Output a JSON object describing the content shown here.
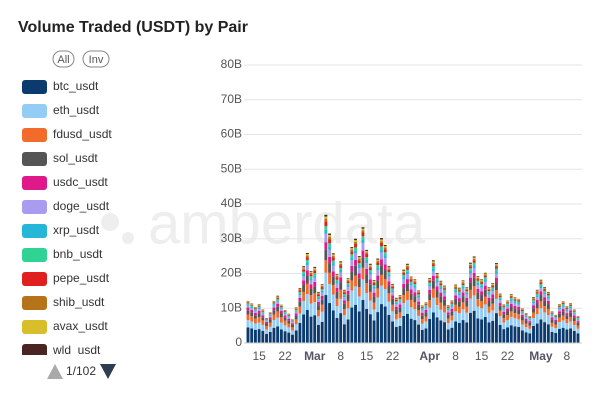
{
  "chart_data": {
    "type": "stacked-bar",
    "title": "Volume Traded (USDT) by Pair",
    "watermark": "amberdata",
    "controls": {
      "all": "All",
      "inv": "Inv",
      "page": "1/102"
    },
    "categories": [
      null,
      null,
      null,
      "15",
      null,
      null,
      null,
      null,
      null,
      null,
      "22",
      null,
      null,
      null,
      null,
      null,
      null,
      null,
      "Mar",
      null,
      null,
      null,
      null,
      null,
      null,
      "8",
      null,
      null,
      null,
      null,
      null,
      null,
      "15",
      null,
      null,
      null,
      null,
      null,
      null,
      "22",
      null,
      null,
      null,
      null,
      null,
      null,
      null,
      null,
      null,
      "Apr",
      null,
      null,
      null,
      null,
      null,
      null,
      "8",
      null,
      null,
      null,
      null,
      null,
      null,
      "15",
      null,
      null,
      null,
      null,
      null,
      null,
      "22",
      null,
      null,
      null,
      null,
      null,
      null,
      null,
      null,
      "May",
      null,
      null,
      null,
      null,
      null,
      null,
      "8",
      null,
      null,
      null
    ],
    "ylim": [
      0,
      80
    ],
    "yticks": [
      0,
      {
        "value": 10,
        "label": "10B"
      },
      {
        "value": 20,
        "label": "20B"
      },
      {
        "value": 30,
        "label": "30B"
      },
      {
        "value": 40,
        "label": "40B"
      },
      {
        "value": 50,
        "label": "50B"
      },
      {
        "value": 60,
        "label": "60B"
      },
      {
        "value": 70,
        "label": "70B"
      },
      {
        "value": 80,
        "label": "80B"
      }
    ],
    "grid": true,
    "series": [
      {
        "name": "btc_usdt",
        "color": "#0b3a6e",
        "values": [
          4.5,
          4.2,
          3.8,
          4.0,
          3.5,
          2.6,
          3.2,
          4.4,
          4.8,
          3.9,
          3.4,
          3.0,
          2.4,
          3.6,
          5.8,
          8.2,
          9.5,
          7.6,
          8.0,
          5.2,
          6.1,
          13.8,
          11.5,
          9.4,
          7.2,
          8.6,
          5.4,
          6.8,
          10.2,
          11.0,
          9.1,
          12.4,
          9.8,
          8.3,
          6.5,
          8.9,
          11.2,
          10.5,
          8.1,
          6.2,
          4.6,
          4.9,
          7.8,
          8.4,
          7.0,
          6.6,
          5.3,
          3.8,
          4.2,
          6.9,
          8.8,
          7.4,
          6.5,
          6.0,
          3.9,
          4.4,
          6.2,
          5.8,
          6.6,
          5.9,
          8.7,
          9.3,
          7.1,
          6.8,
          7.5,
          5.9,
          6.4,
          8.6,
          5.2,
          4.0,
          4.5,
          5.1,
          4.8,
          4.6,
          3.6,
          3.1,
          2.8,
          4.9,
          5.6,
          6.8,
          6.0,
          5.4,
          3.2,
          2.9,
          4.1,
          4.4,
          3.9,
          4.2,
          3.5,
          2.8
        ]
      },
      {
        "name": "eth_usdt",
        "color": "#93cdf6",
        "values": [
          2.1,
          2.0,
          1.8,
          1.9,
          1.7,
          1.3,
          1.5,
          2.2,
          2.5,
          2.0,
          1.7,
          1.5,
          1.2,
          1.8,
          2.7,
          3.9,
          4.6,
          3.7,
          3.8,
          2.5,
          2.9,
          6.4,
          5.5,
          4.5,
          3.4,
          4.1,
          2.6,
          3.2,
          4.9,
          5.3,
          4.3,
          5.9,
          4.6,
          3.9,
          3.1,
          4.2,
          5.3,
          5.0,
          3.8,
          2.9,
          2.2,
          2.3,
          3.7,
          4.0,
          3.3,
          3.1,
          2.5,
          1.8,
          2.0,
          3.3,
          4.2,
          3.5,
          3.1,
          2.8,
          1.8,
          2.1,
          2.9,
          2.8,
          3.1,
          2.8,
          4.1,
          4.4,
          3.4,
          3.2,
          3.6,
          2.8,
          3.0,
          4.1,
          2.5,
          1.9,
          2.1,
          2.4,
          2.3,
          2.2,
          1.7,
          1.5,
          1.3,
          2.3,
          2.7,
          3.2,
          2.8,
          2.6,
          1.5,
          1.4,
          1.9,
          2.1,
          1.8,
          2.0,
          1.7,
          1.3
        ]
      },
      {
        "name": "fdusd_usdt",
        "color": "#f26b2a",
        "values": [
          1.6,
          1.5,
          1.4,
          1.5,
          1.3,
          1.0,
          1.2,
          1.6,
          1.8,
          1.5,
          1.3,
          1.1,
          0.9,
          1.4,
          2.0,
          2.6,
          3.0,
          2.5,
          2.5,
          1.8,
          2.0,
          3.6,
          3.2,
          2.8,
          2.2,
          2.6,
          1.8,
          2.1,
          2.9,
          3.1,
          2.7,
          3.4,
          2.8,
          2.5,
          2.0,
          2.6,
          3.1,
          2.9,
          2.4,
          1.9,
          1.5,
          1.6,
          2.3,
          2.5,
          2.1,
          2.0,
          1.7,
          1.3,
          1.4,
          2.1,
          2.6,
          2.2,
          2.0,
          1.9,
          1.3,
          1.4,
          1.9,
          1.8,
          2.0,
          1.8,
          2.5,
          2.7,
          2.1,
          2.0,
          2.2,
          1.8,
          1.9,
          2.5,
          1.6,
          1.3,
          1.4,
          1.6,
          1.5,
          1.5,
          1.2,
          1.0,
          0.9,
          1.5,
          1.7,
          2.0,
          1.8,
          1.7,
          1.1,
          1.0,
          1.3,
          1.4,
          1.2,
          1.3,
          1.1,
          0.9
        ]
      },
      {
        "name": "sol_usdt",
        "color": "#555555",
        "values": [
          1.2,
          1.1,
          1.0,
          1.1,
          0.9,
          0.7,
          0.9,
          1.2,
          1.3,
          1.1,
          0.9,
          0.8,
          0.7,
          1.0,
          1.5,
          2.0,
          2.3,
          1.9,
          2.0,
          1.4,
          1.6,
          3.2,
          2.8,
          2.4,
          1.9,
          2.2,
          1.5,
          1.8,
          2.6,
          2.8,
          2.4,
          3.0,
          2.5,
          2.2,
          1.8,
          2.3,
          2.8,
          2.6,
          2.1,
          1.7,
          1.3,
          1.4,
          2.0,
          2.2,
          1.9,
          1.8,
          1.5,
          1.1,
          1.2,
          1.9,
          2.3,
          2.0,
          1.8,
          1.7,
          1.1,
          1.2,
          1.7,
          1.6,
          1.8,
          1.6,
          2.2,
          2.4,
          1.9,
          1.8,
          2.0,
          1.6,
          1.7,
          2.2,
          1.4,
          1.1,
          1.2,
          1.4,
          1.3,
          1.3,
          1.0,
          0.9,
          0.8,
          1.3,
          1.5,
          1.8,
          1.6,
          1.5,
          1.0,
          0.9,
          1.1,
          1.2,
          1.1,
          1.2,
          1.0,
          0.8
        ]
      },
      {
        "name": "usdc_usdt",
        "color": "#e0198a",
        "values": [
          0.8,
          0.7,
          0.7,
          0.8,
          0.6,
          0.5,
          0.6,
          0.8,
          0.9,
          0.7,
          0.6,
          0.6,
          0.5,
          0.7,
          1.0,
          1.3,
          1.5,
          1.2,
          1.3,
          0.9,
          1.0,
          2.0,
          1.8,
          1.5,
          1.2,
          1.4,
          1.0,
          1.1,
          1.6,
          1.7,
          1.5,
          1.9,
          1.6,
          1.4,
          1.1,
          1.4,
          1.7,
          1.6,
          1.3,
          1.0,
          0.8,
          0.9,
          1.2,
          1.3,
          1.1,
          1.1,
          0.9,
          0.7,
          0.7,
          1.1,
          1.4,
          1.2,
          1.1,
          1.0,
          0.7,
          0.7,
          1.0,
          0.9,
          1.1,
          0.9,
          1.3,
          1.4,
          1.1,
          1.1,
          1.2,
          0.9,
          1.0,
          1.3,
          0.8,
          0.7,
          0.7,
          0.8,
          0.8,
          0.8,
          0.6,
          0.5,
          0.5,
          0.8,
          0.9,
          1.1,
          1.0,
          0.9,
          0.6,
          0.5,
          0.7,
          0.7,
          0.6,
          0.7,
          0.6,
          0.5
        ]
      },
      {
        "name": "doge_usdt",
        "color": "#a99cf0",
        "values": [
          0.5,
          0.5,
          0.4,
          0.5,
          0.4,
          0.3,
          0.4,
          0.5,
          0.6,
          0.5,
          0.4,
          0.4,
          0.3,
          0.5,
          0.8,
          1.2,
          1.5,
          1.1,
          1.2,
          0.8,
          0.9,
          2.4,
          2.0,
          1.6,
          1.2,
          1.4,
          0.9,
          1.1,
          1.6,
          1.8,
          1.5,
          2.1,
          1.7,
          1.4,
          1.1,
          1.5,
          1.9,
          1.8,
          1.4,
          1.0,
          0.8,
          0.8,
          1.3,
          1.4,
          1.2,
          1.3,
          1.2,
          0.7,
          0.7,
          1.0,
          1.3,
          1.1,
          1.0,
          0.9,
          0.6,
          0.7,
          0.9,
          0.9,
          1.0,
          0.9,
          1.2,
          1.4,
          1.1,
          1.0,
          1.1,
          0.9,
          0.9,
          1.2,
          0.8,
          0.6,
          0.7,
          0.8,
          0.7,
          0.7,
          0.5,
          0.5,
          0.4,
          0.7,
          0.8,
          0.9,
          0.8,
          0.7,
          0.5,
          0.4,
          0.6,
          0.6,
          0.5,
          0.6,
          0.5,
          0.4
        ]
      },
      {
        "name": "xrp_usdt",
        "color": "#26b6d8",
        "values": [
          0.4,
          0.4,
          0.3,
          0.4,
          0.3,
          0.2,
          0.3,
          0.4,
          0.4,
          0.3,
          0.3,
          0.3,
          0.2,
          0.3,
          0.5,
          0.7,
          0.8,
          0.6,
          0.7,
          0.5,
          0.5,
          1.2,
          1.0,
          0.8,
          0.6,
          0.7,
          0.5,
          0.6,
          0.9,
          1.0,
          0.8,
          1.1,
          0.9,
          0.7,
          0.6,
          0.8,
          1.0,
          0.9,
          0.7,
          0.5,
          0.4,
          0.4,
          0.7,
          0.7,
          0.6,
          0.6,
          0.5,
          0.3,
          0.4,
          0.6,
          0.8,
          0.7,
          0.6,
          0.5,
          0.4,
          0.4,
          0.5,
          0.5,
          0.6,
          0.5,
          0.8,
          0.8,
          0.6,
          0.6,
          0.7,
          0.5,
          0.6,
          0.8,
          0.5,
          0.4,
          0.4,
          0.5,
          0.4,
          0.4,
          0.3,
          0.3,
          0.3,
          0.4,
          0.5,
          0.6,
          0.5,
          0.5,
          0.3,
          0.3,
          0.4,
          0.4,
          0.4,
          0.4,
          0.3,
          0.3
        ]
      },
      {
        "name": "bnb_usdt",
        "color": "#2fd494",
        "values": [
          0.3,
          0.3,
          0.3,
          0.3,
          0.3,
          0.2,
          0.2,
          0.3,
          0.4,
          0.3,
          0.3,
          0.2,
          0.2,
          0.3,
          0.4,
          0.6,
          0.7,
          0.6,
          0.6,
          0.4,
          0.5,
          1.0,
          0.9,
          0.7,
          0.5,
          0.6,
          0.4,
          0.5,
          0.8,
          0.8,
          0.7,
          0.9,
          0.8,
          0.6,
          0.5,
          0.7,
          0.8,
          0.8,
          0.6,
          0.5,
          0.4,
          0.4,
          0.6,
          0.6,
          0.5,
          0.5,
          0.4,
          0.3,
          0.3,
          0.5,
          0.7,
          0.6,
          0.5,
          0.5,
          0.3,
          0.4,
          0.5,
          0.5,
          0.5,
          0.5,
          0.7,
          0.7,
          0.6,
          0.5,
          0.6,
          0.5,
          0.5,
          0.7,
          0.4,
          0.3,
          0.4,
          0.4,
          0.4,
          0.4,
          0.3,
          0.3,
          0.2,
          0.4,
          0.5,
          0.5,
          0.5,
          0.4,
          0.3,
          0.2,
          0.3,
          0.4,
          0.3,
          0.3,
          0.3,
          0.2
        ]
      },
      {
        "name": "pepe_usdt",
        "color": "#e0201e",
        "values": [
          0.2,
          0.2,
          0.2,
          0.2,
          0.2,
          0.1,
          0.2,
          0.2,
          0.3,
          0.2,
          0.2,
          0.2,
          0.1,
          0.2,
          0.4,
          0.6,
          0.8,
          0.6,
          0.7,
          0.5,
          0.6,
          1.4,
          1.2,
          0.9,
          0.7,
          0.8,
          0.5,
          0.6,
          0.9,
          1.0,
          0.8,
          1.1,
          0.9,
          0.7,
          0.6,
          0.8,
          1.0,
          0.9,
          0.7,
          0.5,
          0.4,
          0.4,
          0.6,
          0.7,
          0.6,
          0.5,
          0.4,
          0.3,
          0.3,
          0.5,
          0.6,
          0.5,
          0.5,
          0.4,
          0.3,
          0.3,
          0.4,
          0.4,
          0.5,
          0.4,
          0.6,
          0.7,
          0.5,
          0.5,
          0.5,
          0.4,
          0.4,
          0.6,
          0.4,
          0.3,
          0.3,
          0.4,
          0.3,
          0.3,
          0.3,
          0.2,
          0.2,
          0.3,
          0.4,
          0.5,
          0.4,
          0.4,
          0.2,
          0.2,
          0.3,
          0.3,
          0.3,
          0.3,
          0.2,
          0.2
        ]
      },
      {
        "name": "shib_usdt",
        "color": "#b5731a",
        "values": [
          0.2,
          0.2,
          0.2,
          0.2,
          0.2,
          0.1,
          0.1,
          0.2,
          0.2,
          0.2,
          0.2,
          0.1,
          0.1,
          0.2,
          0.3,
          0.4,
          0.5,
          0.4,
          0.4,
          0.3,
          0.3,
          0.8,
          0.7,
          0.5,
          0.4,
          0.4,
          0.3,
          0.3,
          0.5,
          0.6,
          0.5,
          0.6,
          0.5,
          0.4,
          0.3,
          0.4,
          0.5,
          0.5,
          0.4,
          0.3,
          0.2,
          0.2,
          0.3,
          0.4,
          0.3,
          0.3,
          0.3,
          0.2,
          0.2,
          0.3,
          0.4,
          0.3,
          0.3,
          0.3,
          0.2,
          0.2,
          0.3,
          0.3,
          0.3,
          0.3,
          0.4,
          0.4,
          0.3,
          0.3,
          0.3,
          0.3,
          0.3,
          0.4,
          0.2,
          0.2,
          0.2,
          0.2,
          0.2,
          0.2,
          0.2,
          0.1,
          0.1,
          0.2,
          0.3,
          0.3,
          0.3,
          0.2,
          0.2,
          0.1,
          0.2,
          0.2,
          0.2,
          0.2,
          0.2,
          0.1
        ]
      },
      {
        "name": "avax_usdt",
        "color": "#d8be2a",
        "values": [
          0.2,
          0.2,
          0.1,
          0.2,
          0.1,
          0.1,
          0.1,
          0.2,
          0.2,
          0.2,
          0.1,
          0.1,
          0.1,
          0.2,
          0.2,
          0.3,
          0.4,
          0.3,
          0.4,
          0.2,
          0.3,
          0.6,
          0.5,
          0.4,
          0.3,
          0.4,
          0.2,
          0.3,
          0.4,
          0.5,
          0.4,
          0.5,
          0.4,
          0.4,
          0.3,
          0.4,
          0.5,
          0.4,
          0.3,
          0.3,
          0.2,
          0.2,
          0.3,
          0.3,
          0.3,
          0.3,
          0.2,
          0.2,
          0.2,
          0.3,
          0.4,
          0.3,
          0.3,
          0.3,
          0.2,
          0.2,
          0.3,
          0.2,
          0.3,
          0.2,
          0.3,
          0.4,
          0.3,
          0.3,
          0.3,
          0.2,
          0.3,
          0.3,
          0.2,
          0.2,
          0.2,
          0.2,
          0.2,
          0.2,
          0.1,
          0.1,
          0.1,
          0.2,
          0.2,
          0.3,
          0.2,
          0.2,
          0.1,
          0.1,
          0.2,
          0.2,
          0.2,
          0.2,
          0.1,
          0.1
        ]
      },
      {
        "name": "wld_usdt",
        "color": "#4a2420",
        "values": [
          0.1,
          0.1,
          0.1,
          0.1,
          0.1,
          0.1,
          0.1,
          0.1,
          0.2,
          0.1,
          0.1,
          0.1,
          0.1,
          0.1,
          0.2,
          0.3,
          0.3,
          0.2,
          0.3,
          0.2,
          0.2,
          0.5,
          0.4,
          0.3,
          0.2,
          0.3,
          0.2,
          0.2,
          0.3,
          0.4,
          0.3,
          0.4,
          0.3,
          0.3,
          0.2,
          0.3,
          0.4,
          0.3,
          0.3,
          0.2,
          0.2,
          0.2,
          0.3,
          0.3,
          0.2,
          0.2,
          0.2,
          0.1,
          0.1,
          0.2,
          0.3,
          0.3,
          0.2,
          0.2,
          0.1,
          0.2,
          0.2,
          0.2,
          0.2,
          0.2,
          0.3,
          0.3,
          0.2,
          0.2,
          0.2,
          0.2,
          0.2,
          0.3,
          0.2,
          0.1,
          0.1,
          0.2,
          0.2,
          0.1,
          0.1,
          0.1,
          0.1,
          0.2,
          0.2,
          0.2,
          0.2,
          0.2,
          0.1,
          0.1,
          0.1,
          0.1,
          0.1,
          0.1,
          0.1,
          0.1
        ]
      }
    ]
  }
}
